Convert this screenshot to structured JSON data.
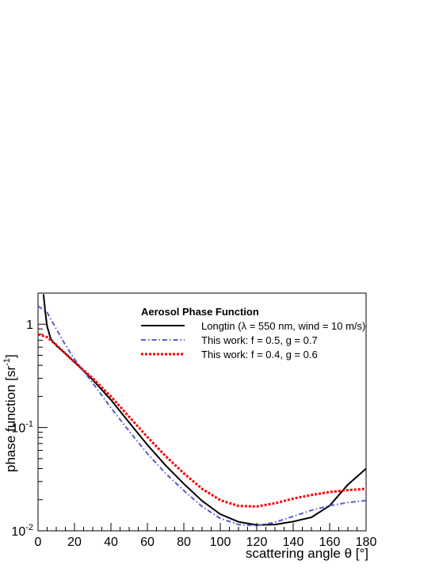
{
  "chart_data": {
    "type": "line",
    "title": "",
    "xlabel": "scattering angle θ [°]",
    "ylabel": "phase function [sr",
    "ylabel_exponent": "-1",
    "ylabel_close": "]",
    "xlim": [
      0,
      180
    ],
    "ylim": [
      0.01,
      2.0
    ],
    "y_scale": "log",
    "grid": false,
    "legend_placement": "top-center",
    "legend_title": "Aerosol Phase Function",
    "x_ticks": [
      {
        "value": 0,
        "label": "0"
      },
      {
        "value": 20,
        "label": "20"
      },
      {
        "value": 40,
        "label": "40"
      },
      {
        "value": 60,
        "label": "60"
      },
      {
        "value": 80,
        "label": "80"
      },
      {
        "value": 100,
        "label": "100"
      },
      {
        "value": 120,
        "label": "120"
      },
      {
        "value": 140,
        "label": "140"
      },
      {
        "value": 160,
        "label": "160"
      },
      {
        "value": 180,
        "label": "180"
      }
    ],
    "y_ticks": [
      {
        "value": 1,
        "label": "1",
        "exponent": ""
      },
      {
        "value": 0.1,
        "label": "10",
        "exponent": "-1"
      },
      {
        "value": 0.01,
        "label": "10",
        "exponent": "-2"
      }
    ],
    "series": [
      {
        "name": "Longtin (λ = 550 nm, wind = 10 m/s)",
        "color": "#000000",
        "style": "solid",
        "x": [
          3,
          4,
          5,
          7,
          10,
          15,
          20,
          30,
          40,
          50,
          60,
          70,
          80,
          90,
          100,
          110,
          120,
          130,
          140,
          150,
          160,
          170,
          180
        ],
        "y": [
          1.95,
          1.3,
          0.95,
          0.72,
          0.62,
          0.52,
          0.43,
          0.29,
          0.185,
          0.112,
          0.068,
          0.043,
          0.0285,
          0.0195,
          0.0145,
          0.0122,
          0.0114,
          0.0115,
          0.0123,
          0.0135,
          0.0175,
          0.028,
          0.04
        ]
      },
      {
        "name": "This work: f = 0.5, g = 0.7",
        "color": "#5a5ad2",
        "style": "dash-dot",
        "x": [
          0,
          5,
          10,
          15,
          20,
          30,
          40,
          50,
          60,
          70,
          80,
          90,
          100,
          110,
          120,
          130,
          140,
          150,
          160,
          170,
          180
        ],
        "y": [
          1.5,
          1.3,
          0.9,
          0.63,
          0.46,
          0.27,
          0.155,
          0.092,
          0.056,
          0.036,
          0.0245,
          0.0172,
          0.0132,
          0.0115,
          0.0112,
          0.0121,
          0.0138,
          0.0158,
          0.0175,
          0.0188,
          0.0196
        ]
      },
      {
        "name": "This work: f = 0.4, g = 0.6",
        "color": "#ff0000",
        "style": "dotted",
        "x": [
          0,
          5,
          10,
          15,
          20,
          30,
          40,
          50,
          60,
          70,
          80,
          90,
          100,
          110,
          120,
          130,
          140,
          150,
          160,
          170,
          180
        ],
        "y": [
          0.8,
          0.75,
          0.63,
          0.52,
          0.43,
          0.3,
          0.2,
          0.127,
          0.081,
          0.053,
          0.036,
          0.0255,
          0.0198,
          0.0174,
          0.0172,
          0.0185,
          0.0205,
          0.0222,
          0.0237,
          0.0248,
          0.0255
        ]
      }
    ]
  }
}
